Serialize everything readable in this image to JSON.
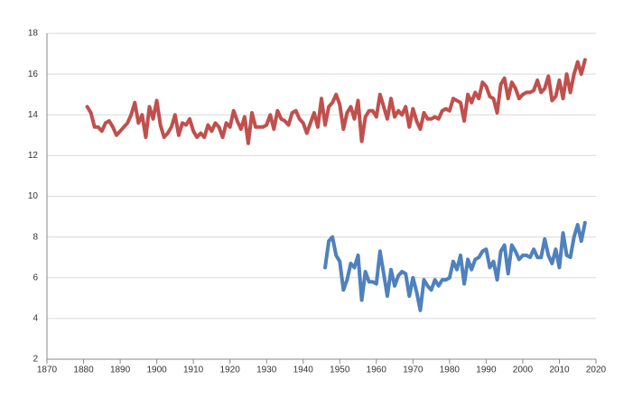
{
  "chart_data": {
    "type": "line",
    "x": [
      1881,
      1882,
      1883,
      1884,
      1885,
      1886,
      1887,
      1888,
      1889,
      1890,
      1891,
      1892,
      1893,
      1894,
      1895,
      1896,
      1897,
      1898,
      1899,
      1900,
      1901,
      1902,
      1903,
      1904,
      1905,
      1906,
      1907,
      1908,
      1909,
      1910,
      1911,
      1912,
      1913,
      1914,
      1915,
      1916,
      1917,
      1918,
      1919,
      1920,
      1921,
      1922,
      1923,
      1924,
      1925,
      1926,
      1927,
      1928,
      1929,
      1930,
      1931,
      1932,
      1933,
      1934,
      1935,
      1936,
      1937,
      1938,
      1939,
      1940,
      1941,
      1942,
      1943,
      1944,
      1945,
      1946,
      1947,
      1948,
      1949,
      1950,
      1951,
      1952,
      1953,
      1954,
      1955,
      1956,
      1957,
      1958,
      1959,
      1960,
      1961,
      1962,
      1963,
      1964,
      1965,
      1966,
      1967,
      1968,
      1969,
      1970,
      1971,
      1972,
      1973,
      1974,
      1975,
      1976,
      1977,
      1978,
      1979,
      1980,
      1981,
      1982,
      1983,
      1984,
      1985,
      1986,
      1987,
      1988,
      1989,
      1990,
      1991,
      1992,
      1993,
      1994,
      1995,
      1996,
      1997,
      1998,
      1999,
      2000,
      2001,
      2002,
      2003,
      2004,
      2005,
      2006,
      2007,
      2008,
      2009,
      2010,
      2011,
      2012,
      2013,
      2014,
      2015,
      2016,
      2017
    ],
    "series": [
      {
        "color": "#c0504d",
        "values": [
          14.4,
          14.1,
          13.4,
          13.4,
          13.2,
          13.6,
          13.7,
          13.4,
          13.0,
          13.2,
          13.4,
          13.6,
          14.0,
          14.6,
          13.6,
          14.0,
          12.9,
          14.4,
          13.8,
          14.7,
          13.5,
          12.9,
          13.1,
          13.4,
          14.0,
          13.0,
          13.6,
          13.5,
          13.8,
          13.2,
          12.9,
          13.1,
          12.9,
          13.5,
          13.2,
          13.6,
          13.4,
          12.9,
          13.6,
          13.4,
          14.2,
          13.7,
          13.3,
          13.9,
          12.6,
          14.1,
          13.4,
          13.4,
          13.4,
          13.5,
          14.0,
          13.3,
          14.2,
          13.8,
          13.7,
          13.5,
          14.1,
          14.2,
          13.8,
          13.6,
          13.1,
          13.6,
          14.1,
          13.4,
          14.8,
          13.5,
          14.4,
          14.6,
          15.0,
          14.5,
          13.3,
          14.1,
          14.4,
          13.8,
          14.7,
          12.7,
          13.9,
          14.2,
          14.2,
          13.9,
          15.0,
          14.4,
          13.8,
          14.8,
          13.9,
          14.2,
          14.0,
          14.4,
          13.4,
          14.3,
          13.7,
          13.3,
          14.1,
          13.8,
          13.8,
          13.9,
          13.8,
          14.2,
          14.3,
          14.2,
          14.8,
          14.7,
          14.6,
          13.7,
          15.0,
          14.6,
          15.1,
          14.8,
          15.6,
          15.4,
          14.9,
          14.8,
          14.1,
          15.5,
          15.8,
          14.8,
          15.6,
          15.3,
          14.8,
          15.0,
          15.1,
          15.1,
          15.2,
          15.7,
          15.1,
          15.3,
          15.9,
          14.7,
          14.9,
          15.7,
          14.8,
          16.0,
          15.1,
          16.0,
          16.6,
          16.0,
          16.7
        ]
      },
      {
        "color": "#4f81bd",
        "values": [
          null,
          null,
          null,
          null,
          null,
          null,
          null,
          null,
          null,
          null,
          null,
          null,
          null,
          null,
          null,
          null,
          null,
          null,
          null,
          null,
          null,
          null,
          null,
          null,
          null,
          null,
          null,
          null,
          null,
          null,
          null,
          null,
          null,
          null,
          null,
          null,
          null,
          null,
          null,
          null,
          null,
          null,
          null,
          null,
          null,
          null,
          null,
          null,
          null,
          null,
          null,
          null,
          null,
          null,
          null,
          null,
          null,
          null,
          null,
          null,
          null,
          null,
          null,
          null,
          null,
          6.5,
          7.8,
          8.0,
          7.1,
          6.8,
          5.4,
          5.9,
          6.7,
          6.5,
          7.1,
          4.9,
          6.3,
          5.8,
          5.8,
          5.7,
          7.3,
          6.2,
          5.1,
          6.4,
          5.6,
          6.1,
          6.3,
          6.2,
          5.1,
          6.0,
          5.3,
          4.4,
          5.9,
          5.6,
          5.4,
          5.9,
          5.6,
          5.9,
          5.9,
          6.0,
          6.8,
          6.4,
          7.1,
          5.7,
          6.9,
          6.4,
          6.9,
          7.0,
          7.3,
          7.4,
          6.5,
          6.8,
          5.9,
          7.3,
          7.6,
          6.2,
          7.6,
          7.3,
          6.9,
          7.1,
          7.1,
          7.0,
          7.4,
          7.0,
          7.0,
          7.9,
          7.1,
          6.7,
          7.4,
          6.5,
          8.2,
          7.1,
          7.0,
          8.0,
          8.6,
          7.8,
          8.7
        ]
      }
    ],
    "xlim": [
      1870,
      2020
    ],
    "xticks": [
      1870,
      1880,
      1890,
      1900,
      1910,
      1920,
      1930,
      1940,
      1950,
      1960,
      1970,
      1980,
      1990,
      2000,
      2010,
      2020
    ],
    "ylim": [
      2,
      18
    ],
    "yticks": [
      2,
      4,
      6,
      8,
      10,
      12,
      14,
      16,
      18
    ],
    "grid": true
  }
}
